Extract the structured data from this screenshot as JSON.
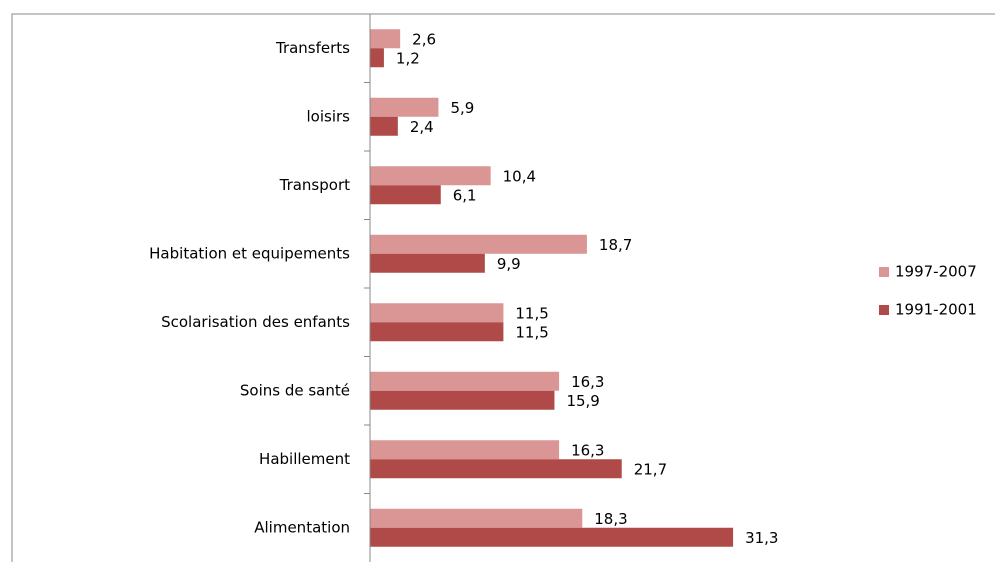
{
  "chart_data": {
    "type": "hbar",
    "categories": [
      "Transferts",
      "loisirs",
      "Transport",
      "Habitation et equipements",
      "Scolarisation des enfants",
      "Soins de santé",
      "Habillement",
      "Alimentation"
    ],
    "series": [
      {
        "name": "1997-2007",
        "color": "#d99694",
        "values": [
          2.6,
          5.9,
          10.4,
          18.7,
          11.5,
          16.3,
          16.3,
          18.3
        ],
        "value_labels": [
          "2,6",
          "5,9",
          "10,4",
          "18,7",
          "11,5",
          "16,3",
          "16,3",
          "18,3"
        ]
      },
      {
        "name": "1991-2001",
        "color": "#b04a48",
        "values": [
          1.2,
          2.4,
          6.1,
          9.9,
          11.5,
          15.9,
          21.7,
          31.3
        ],
        "value_labels": [
          "1,2",
          "2,4",
          "6,1",
          "9,9",
          "11,5",
          "15,9",
          "21,7",
          "31,3"
        ]
      }
    ],
    "xlim": [
      0,
      35
    ],
    "legend": "right"
  }
}
